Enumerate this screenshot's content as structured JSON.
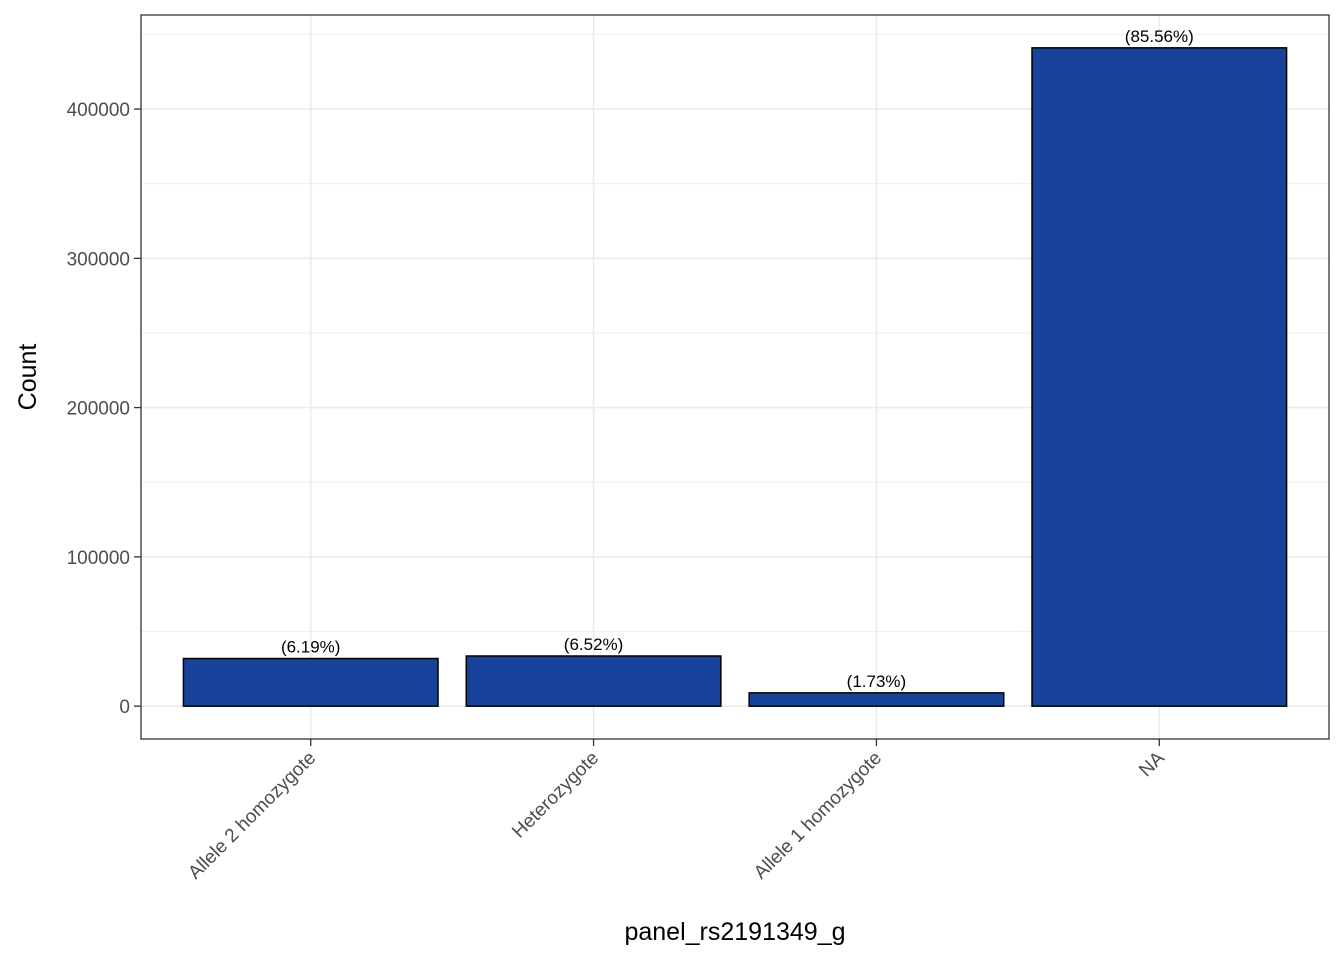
{
  "chart_data": {
    "type": "bar",
    "categories": [
      "Allele 2 homozygote",
      "Heterozygote",
      "Allele 1 homozygote",
      "NA"
    ],
    "values": [
      31900,
      33600,
      8900,
      441000
    ],
    "bar_labels": [
      "(6.19%)",
      "(6.52%)",
      "(1.73%)",
      "(85.56%)"
    ],
    "title": "",
    "xlabel": "panel_rs2191349_g",
    "ylabel": "Count",
    "ylim": [
      -22000,
      463000
    ],
    "yticks": [
      0,
      100000,
      200000,
      300000,
      400000
    ],
    "ytick_labels": [
      "0",
      "100000",
      "200000",
      "300000",
      "400000"
    ],
    "grid": true,
    "legend": "none",
    "colors": {
      "bar_fill": "#17439A",
      "bar_stroke": "#000000",
      "grid": "#EBEBEB",
      "panel_border": "#333333"
    }
  }
}
